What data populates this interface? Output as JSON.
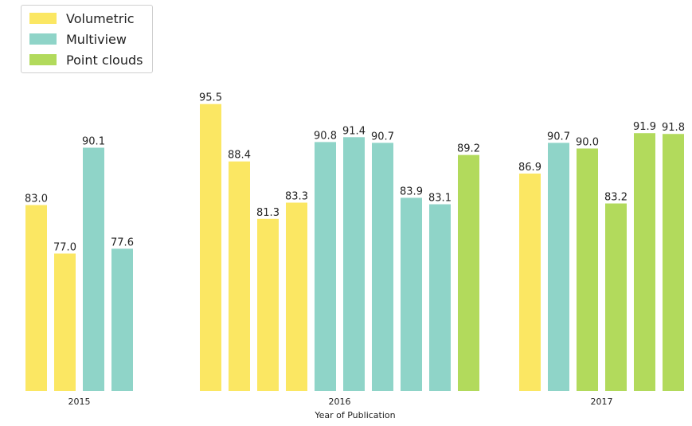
{
  "chart_data": {
    "type": "bar",
    "xlabel": "Year of Publication",
    "ylabel": "",
    "ylim": [
      60,
      100
    ],
    "legend": {
      "placement": "top-left",
      "entries": [
        {
          "name": "Volumetric",
          "color": "#fbe763"
        },
        {
          "name": "Multiview",
          "color": "#8fd4c8"
        },
        {
          "name": "Point clouds",
          "color": "#b2da5c"
        }
      ]
    },
    "groups": [
      {
        "label": "2015",
        "bars": [
          {
            "series": "Volumetric",
            "value": 83.0,
            "label": "83.0"
          },
          {
            "series": "Volumetric",
            "value": 77.0,
            "label": "77.0"
          },
          {
            "series": "Multiview",
            "value": 90.1,
            "label": "90.1"
          },
          {
            "series": "Multiview",
            "value": 77.6,
            "label": "77.6"
          }
        ]
      },
      {
        "label": "2016",
        "bars": [
          {
            "series": "Volumetric",
            "value": 95.5,
            "label": "95.5"
          },
          {
            "series": "Volumetric",
            "value": 88.4,
            "label": "88.4"
          },
          {
            "series": "Volumetric",
            "value": 81.3,
            "label": "81.3"
          },
          {
            "series": "Volumetric",
            "value": 83.3,
            "label": "83.3"
          },
          {
            "series": "Multiview",
            "value": 90.8,
            "label": "90.8"
          },
          {
            "series": "Multiview",
            "value": 91.4,
            "label": "91.4"
          },
          {
            "series": "Multiview",
            "value": 90.7,
            "label": "90.7"
          },
          {
            "series": "Multiview",
            "value": 83.9,
            "label": "83.9"
          },
          {
            "series": "Multiview",
            "value": 83.1,
            "label": "83.1"
          },
          {
            "series": "Point clouds",
            "value": 89.2,
            "label": "89.2"
          }
        ]
      },
      {
        "label": "2017",
        "bars": [
          {
            "series": "Volumetric",
            "value": 86.9,
            "label": "86.9"
          },
          {
            "series": "Multiview",
            "value": 90.7,
            "label": "90.7"
          },
          {
            "series": "Point clouds",
            "value": 90.0,
            "label": "90.0"
          },
          {
            "series": "Point clouds",
            "value": 83.2,
            "label": "83.2"
          },
          {
            "series": "Point clouds",
            "value": 91.9,
            "label": "91.9"
          },
          {
            "series": "Point clouds",
            "value": 91.8,
            "label": "91.8"
          }
        ]
      }
    ]
  }
}
